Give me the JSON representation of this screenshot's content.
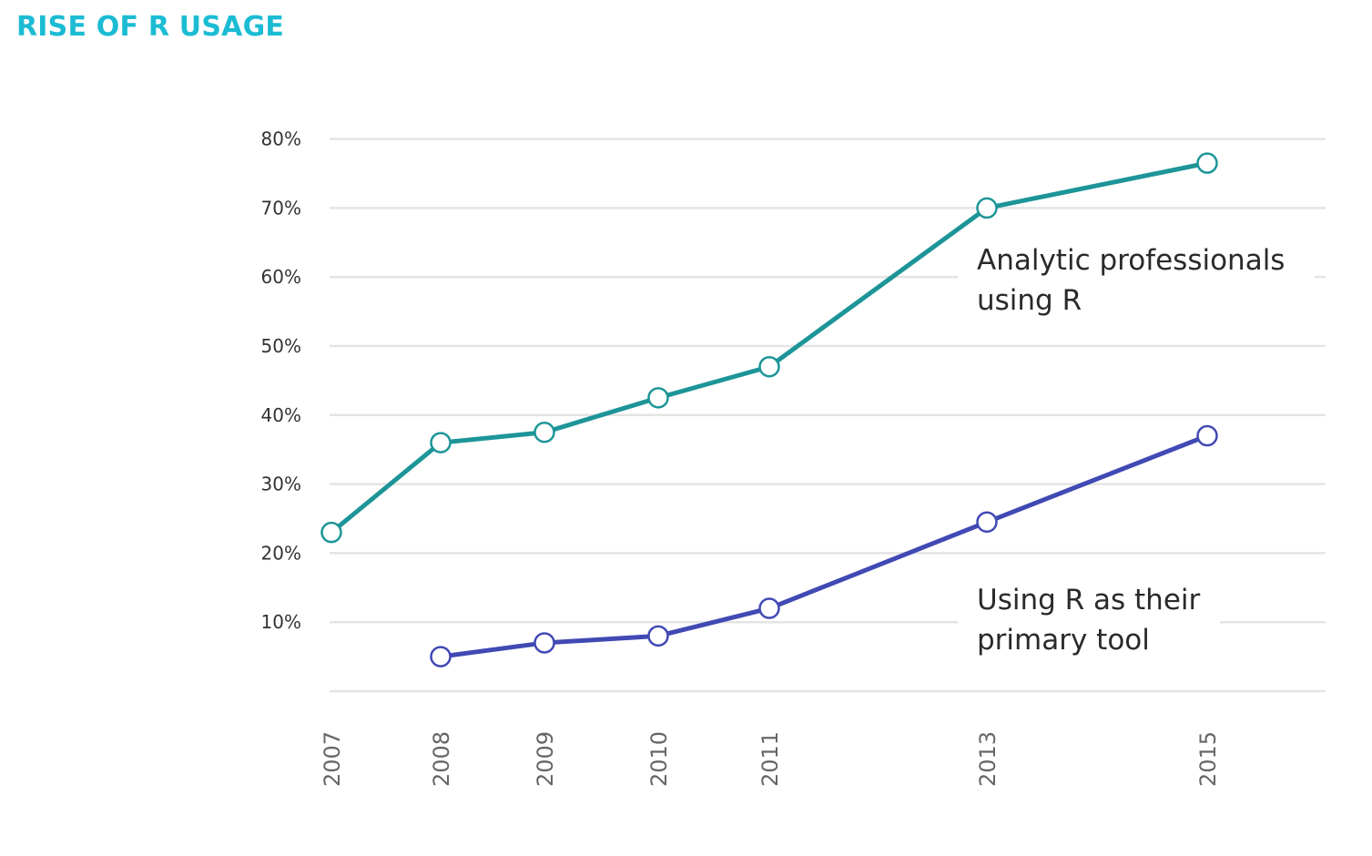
{
  "title": "RISE OF R USAGE",
  "chart_data": {
    "type": "line",
    "title": "RISE OF R USAGE",
    "xlabel": "",
    "ylabel": "",
    "x": [
      "2007",
      "2008",
      "2009",
      "2010",
      "2011",
      "2013",
      "2015"
    ],
    "ylim": [
      0,
      80
    ],
    "yticks": [
      10,
      20,
      30,
      40,
      50,
      60,
      70,
      80
    ],
    "ytick_labels": [
      "10%",
      "20%",
      "30%",
      "40%",
      "50%",
      "60%",
      "70%",
      "80%"
    ],
    "grid": true,
    "legend": "none",
    "series": [
      {
        "name": "",
        "color": "#1d9598",
        "values": [
          23,
          36,
          37.5,
          42.5,
          47,
          70,
          76.5
        ]
      },
      {
        "name": "",
        "color": "#4149b4",
        "values": [
          null,
          5,
          7,
          8,
          12,
          24.5,
          37
        ]
      }
    ],
    "annotations": [
      {
        "lines": [
          "Analytic professionals",
          "using R"
        ]
      },
      {
        "lines": [
          "Using R as their",
          "primary tool"
        ]
      }
    ]
  }
}
